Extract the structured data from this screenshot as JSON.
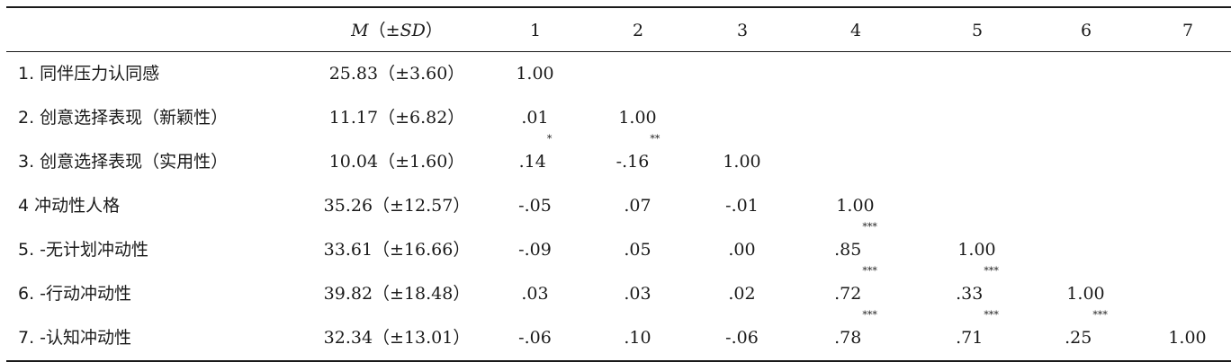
{
  "header": {
    "msd_m": "M",
    "msd_open": "（±",
    "msd_sd": "SD",
    "msd_close": "）",
    "cols": [
      "1",
      "2",
      "3",
      "4",
      "5",
      "6",
      "7"
    ]
  },
  "rows": [
    {
      "label": "1. 同伴压力认同感",
      "msd": "25.83（±3.60）",
      "cells": [
        {
          "v": "1.00",
          "s": ""
        },
        {
          "v": "",
          "s": ""
        },
        {
          "v": "",
          "s": ""
        },
        {
          "v": "",
          "s": ""
        },
        {
          "v": "",
          "s": ""
        },
        {
          "v": "",
          "s": ""
        },
        {
          "v": "",
          "s": ""
        }
      ]
    },
    {
      "label": "2. 创意选择表现（新颖性）",
      "msd": "11.17（±6.82）",
      "cells": [
        {
          "v": ".01",
          "s": ""
        },
        {
          "v": "1.00",
          "s": ""
        },
        {
          "v": "",
          "s": ""
        },
        {
          "v": "",
          "s": ""
        },
        {
          "v": "",
          "s": ""
        },
        {
          "v": "",
          "s": ""
        },
        {
          "v": "",
          "s": ""
        }
      ]
    },
    {
      "label": "3. 创意选择表现（实用性）",
      "msd": "10.04（±1.60）",
      "cells": [
        {
          "v": ".14",
          "s": "*"
        },
        {
          "v": "-.16",
          "s": "**"
        },
        {
          "v": "1.00",
          "s": ""
        },
        {
          "v": "",
          "s": ""
        },
        {
          "v": "",
          "s": ""
        },
        {
          "v": "",
          "s": ""
        },
        {
          "v": "",
          "s": ""
        }
      ]
    },
    {
      "label": "4 冲动性人格",
      "msd": "35.26（±12.57）",
      "cells": [
        {
          "v": "-.05",
          "s": ""
        },
        {
          "v": ".07",
          "s": ""
        },
        {
          "v": "-.01",
          "s": ""
        },
        {
          "v": "1.00",
          "s": ""
        },
        {
          "v": "",
          "s": ""
        },
        {
          "v": "",
          "s": ""
        },
        {
          "v": "",
          "s": ""
        }
      ]
    },
    {
      "label": "5. -无计划冲动性",
      "msd": "33.61（±16.66）",
      "cells": [
        {
          "v": "-.09",
          "s": ""
        },
        {
          "v": ".05",
          "s": ""
        },
        {
          "v": ".00",
          "s": ""
        },
        {
          "v": ".85",
          "s": "***"
        },
        {
          "v": "1.00",
          "s": ""
        },
        {
          "v": "",
          "s": ""
        },
        {
          "v": "",
          "s": ""
        }
      ]
    },
    {
      "label": "6. -行动冲动性",
      "msd": "39.82（±18.48）",
      "cells": [
        {
          "v": ".03",
          "s": ""
        },
        {
          "v": ".03",
          "s": ""
        },
        {
          "v": ".02",
          "s": ""
        },
        {
          "v": ".72",
          "s": "***"
        },
        {
          "v": ".33",
          "s": "***"
        },
        {
          "v": "1.00",
          "s": ""
        },
        {
          "v": "",
          "s": ""
        }
      ]
    },
    {
      "label": "7. -认知冲动性",
      "msd": "32.34（±13.01）",
      "cells": [
        {
          "v": "-.06",
          "s": ""
        },
        {
          "v": ".10",
          "s": ""
        },
        {
          "v": "-.06",
          "s": ""
        },
        {
          "v": ".78",
          "s": "***"
        },
        {
          "v": ".71",
          "s": "***"
        },
        {
          "v": ".25",
          "s": "***"
        },
        {
          "v": "1.00",
          "s": ""
        }
      ]
    }
  ]
}
